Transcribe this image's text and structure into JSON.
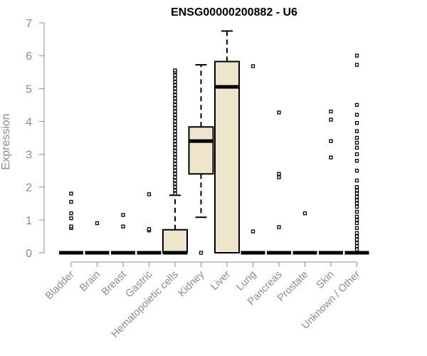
{
  "chart_data": {
    "type": "boxplot",
    "title": "ENSG00000200882 - U6",
    "xlabel": "",
    "ylabel": "Expression",
    "ylim": [
      0,
      7
    ],
    "yticks": [
      0,
      1,
      2,
      3,
      4,
      5,
      6,
      7
    ],
    "box_fill": "#ede5cc",
    "categories": [
      "Bladder",
      "Brain",
      "Breast",
      "Gastric",
      "Hematopoietic cells",
      "Kidney",
      "Liver",
      "Lung",
      "Pancreas",
      "Prostate",
      "Skin",
      "Unknown / Other"
    ],
    "boxes": [
      {
        "name": "Bladder",
        "q1": 0,
        "median": 0,
        "q3": 0,
        "whisker_low": 0,
        "whisker_high": 0,
        "outliers": [
          0.75,
          0.8,
          1.05,
          1.2,
          1.55,
          1.8
        ]
      },
      {
        "name": "Brain",
        "q1": 0,
        "median": 0,
        "q3": 0,
        "whisker_low": 0,
        "whisker_high": 0,
        "outliers": [
          0.9
        ]
      },
      {
        "name": "Breast",
        "q1": 0,
        "median": 0,
        "q3": 0,
        "whisker_low": 0,
        "whisker_high": 0,
        "outliers": [
          0.8,
          1.15
        ]
      },
      {
        "name": "Gastric",
        "q1": 0,
        "median": 0,
        "q3": 0,
        "whisker_low": 0,
        "whisker_high": 0,
        "outliers": [
          0.68,
          0.72,
          1.78
        ]
      },
      {
        "name": "Hematopoietic cells",
        "q1": 0,
        "median": 0,
        "q3": 0.7,
        "whisker_low": 0,
        "whisker_high": 1.75,
        "outliers": [
          1.8,
          1.9,
          2.0,
          2.1,
          2.2,
          2.3,
          2.4,
          2.5,
          2.6,
          2.7,
          2.8,
          2.9,
          3.0,
          3.1,
          3.2,
          3.3,
          3.4,
          3.5,
          3.6,
          3.7,
          3.8,
          3.9,
          4.0,
          4.1,
          4.2,
          4.3,
          4.4,
          4.5,
          4.6,
          4.7,
          4.8,
          4.9,
          5.0,
          5.1,
          5.2,
          5.3,
          5.4,
          5.5,
          5.55
        ]
      },
      {
        "name": "Kidney",
        "q1": 2.4,
        "median": 3.4,
        "q3": 3.83,
        "whisker_low": 1.08,
        "whisker_high": 5.72,
        "outliers": [
          0
        ]
      },
      {
        "name": "Liver",
        "q1": 0,
        "median": 5.05,
        "q3": 5.82,
        "whisker_low": 0,
        "whisker_high": 6.75,
        "outliers": []
      },
      {
        "name": "Lung",
        "q1": 0,
        "median": 0,
        "q3": 0,
        "whisker_low": 0,
        "whisker_high": 0,
        "outliers": [
          0.65,
          5.68
        ]
      },
      {
        "name": "Pancreas",
        "q1": 0,
        "median": 0,
        "q3": 0,
        "whisker_low": 0,
        "whisker_high": 0,
        "outliers": [
          0.78,
          2.3,
          2.4,
          4.27
        ]
      },
      {
        "name": "Prostate",
        "q1": 0,
        "median": 0,
        "q3": 0,
        "whisker_low": 0,
        "whisker_high": 0,
        "outliers": [
          1.2
        ]
      },
      {
        "name": "Skin",
        "q1": 0,
        "median": 0,
        "q3": 0,
        "whisker_low": 0,
        "whisker_high": 0,
        "outliers": [
          2.9,
          3.4,
          4.05,
          4.3
        ]
      },
      {
        "name": "Unknown / Other",
        "q1": 0,
        "median": 0,
        "q3": 0,
        "whisker_low": 0,
        "whisker_high": 0,
        "outliers": [
          0.1,
          0.2,
          0.3,
          0.4,
          0.5,
          0.6,
          0.75,
          0.9,
          1.0,
          1.1,
          1.25,
          1.4,
          1.5,
          1.6,
          1.7,
          1.8,
          1.9,
          2.0,
          2.2,
          2.5,
          2.8,
          3.0,
          3.2,
          3.35,
          3.5,
          3.7,
          3.95,
          4.2,
          4.5,
          5.72,
          6.0
        ]
      }
    ]
  }
}
